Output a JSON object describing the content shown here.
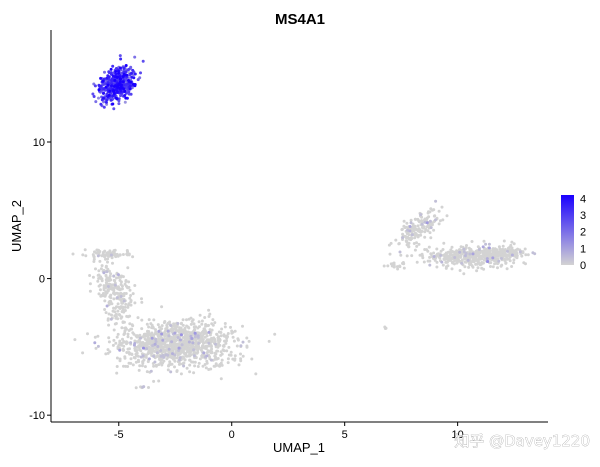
{
  "chart_data": {
    "type": "scatter",
    "title": "MS4A1",
    "xlabel": "UMAP_1",
    "ylabel": "UMAP_2",
    "xlim": [
      -8,
      14
    ],
    "ylim": [
      -10.5,
      18.2
    ],
    "xticks": [
      -5,
      0,
      5,
      10
    ],
    "yticks": [
      -10,
      0,
      10
    ],
    "grid": false,
    "colorscale": {
      "low": "#d3d3d3",
      "high": "#0000ff",
      "min": 0,
      "max": 4.2
    },
    "legend": {
      "placement": "right",
      "labels": [
        "4",
        "3",
        "2",
        "1",
        "0"
      ],
      "values": [
        4,
        3,
        2,
        1,
        0
      ]
    },
    "clusters": [
      {
        "center": [
          -5.1,
          14.2
        ],
        "spread": [
          0.55,
          1.1
        ],
        "angle": -0.35,
        "n": 420,
        "expr_mean": 3.0,
        "expr_sd": 0.9,
        "expr_frac": 0.97
      },
      {
        "center": [
          -2.5,
          -4.8
        ],
        "spread": [
          2.3,
          1.4
        ],
        "angle": 0.0,
        "n": 1100,
        "expr_mean": 0.2,
        "expr_sd": 0.6,
        "expr_frac": 0.06
      },
      {
        "center": [
          -5.2,
          -1.0
        ],
        "spread": [
          0.6,
          1.8
        ],
        "angle": 0.2,
        "n": 220,
        "expr_mean": 0.2,
        "expr_sd": 0.6,
        "expr_frac": 0.06
      },
      {
        "center": [
          -5.4,
          1.8
        ],
        "spread": [
          0.8,
          0.3
        ],
        "angle": 0.0,
        "n": 70,
        "expr_mean": 0.2,
        "expr_sd": 0.6,
        "expr_frac": 0.06
      },
      {
        "center": [
          10.5,
          1.6
        ],
        "spread": [
          1.6,
          0.65
        ],
        "angle": 0.0,
        "n": 380,
        "expr_mean": 0.2,
        "expr_sd": 0.6,
        "expr_frac": 0.08
      },
      {
        "center": [
          8.2,
          3.6
        ],
        "spread": [
          0.5,
          1.4
        ],
        "angle": -0.5,
        "n": 170,
        "expr_mean": 0.2,
        "expr_sd": 0.6,
        "expr_frac": 0.08
      },
      {
        "center": [
          12.0,
          1.9
        ],
        "spread": [
          0.9,
          0.45
        ],
        "angle": 0.0,
        "n": 130,
        "expr_mean": 0.2,
        "expr_sd": 0.6,
        "expr_frac": 0.06
      },
      {
        "center": [
          7.3,
          1.0
        ],
        "spread": [
          0.55,
          0.2
        ],
        "angle": 0.3,
        "n": 20,
        "expr_mean": 0.1,
        "expr_sd": 0.3,
        "expr_frac": 0.0
      },
      {
        "center": [
          6.8,
          -3.7
        ],
        "spread": [
          0.1,
          0.1
        ],
        "angle": 0.0,
        "n": 3,
        "expr_mean": 0.0,
        "expr_sd": 0.1,
        "expr_frac": 0.0
      },
      {
        "center": [
          -4.0,
          -8.0
        ],
        "spread": [
          0.25,
          0.12
        ],
        "angle": 0.0,
        "n": 6,
        "expr_mean": 0.5,
        "expr_sd": 0.5,
        "expr_frac": 0.3
      }
    ]
  },
  "watermark": "知乎 @Davey1220"
}
